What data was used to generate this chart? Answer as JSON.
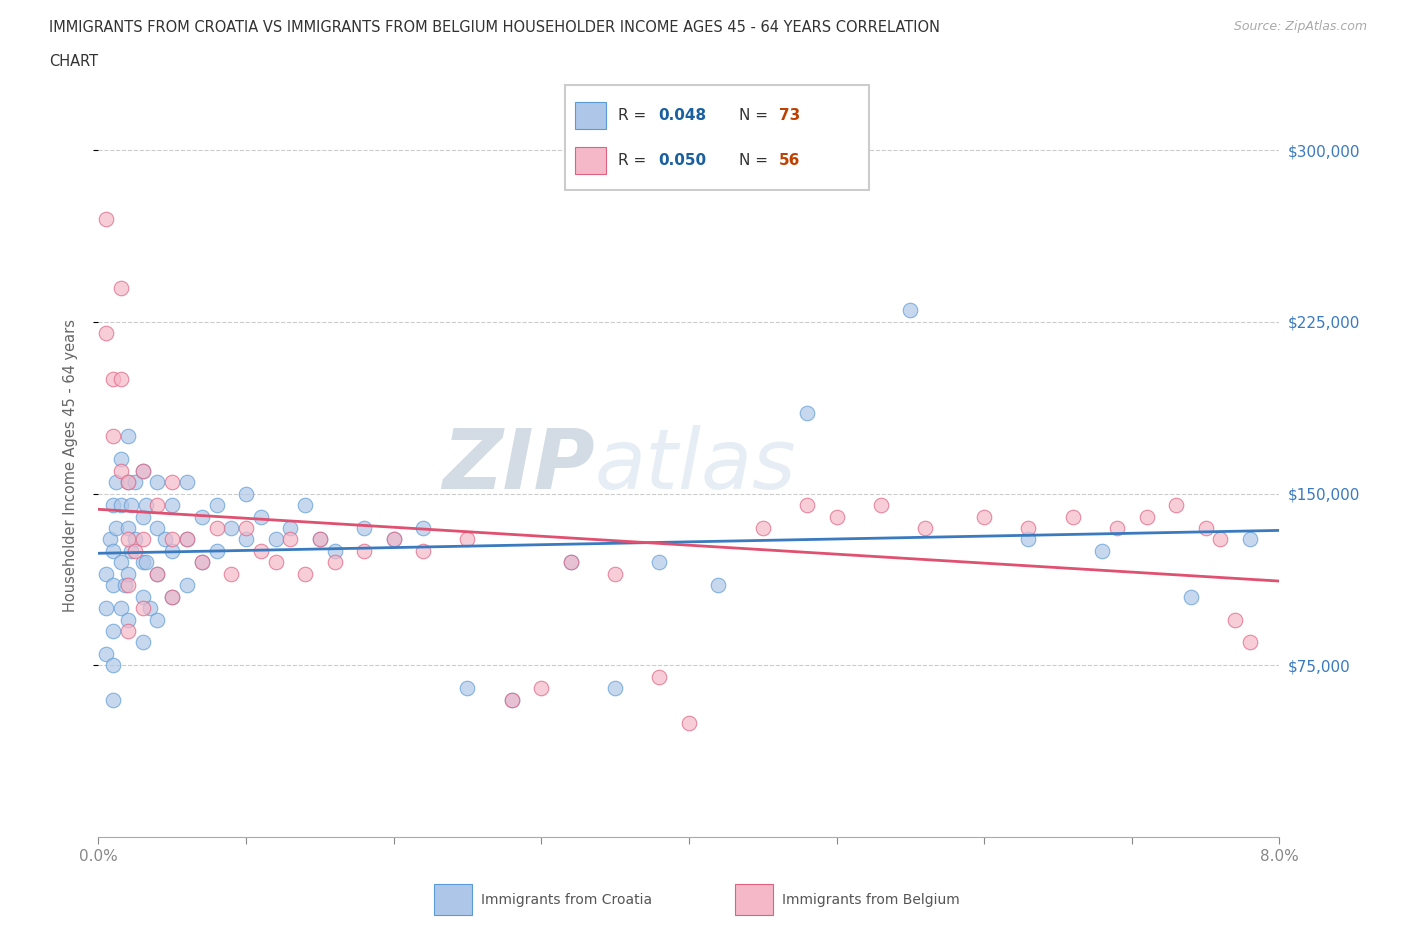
{
  "title_line1": "IMMIGRANTS FROM CROATIA VS IMMIGRANTS FROM BELGIUM HOUSEHOLDER INCOME AGES 45 - 64 YEARS CORRELATION",
  "title_line2": "CHART",
  "source_text": "Source: ZipAtlas.com",
  "ylabel": "Householder Income Ages 45 - 64 years",
  "xlim": [
    0.0,
    0.08
  ],
  "ylim": [
    0,
    325000
  ],
  "xticks": [
    0.0,
    0.01,
    0.02,
    0.03,
    0.04,
    0.05,
    0.06,
    0.07,
    0.08
  ],
  "xticklabels": [
    "0.0%",
    "",
    "",
    "",
    "",
    "",
    "",
    "",
    "8.0%"
  ],
  "ytick_positions": [
    75000,
    150000,
    225000,
    300000
  ],
  "ytick_labels": [
    "$75,000",
    "$150,000",
    "$225,000",
    "$300,000"
  ],
  "croatia_color": "#aec7e8",
  "croatia_edge": "#5b9bd5",
  "belgium_color": "#f4b8c8",
  "belgium_edge": "#e06080",
  "croatia_line_color": "#3a7abf",
  "belgium_line_color": "#e05070",
  "R_croatia": 0.048,
  "N_croatia": 73,
  "R_belgium": 0.05,
  "N_belgium": 56,
  "legend_R_color": "#1a5fa0",
  "legend_N_color": "#c04000",
  "watermark_zip": "ZIP",
  "watermark_atlas": "atlas",
  "watermark_color_zip": "#d0dde8",
  "watermark_color_atlas": "#c8d8e8",
  "croatia_x": [
    0.0005,
    0.0005,
    0.0005,
    0.0008,
    0.001,
    0.001,
    0.001,
    0.001,
    0.001,
    0.001,
    0.0012,
    0.0012,
    0.0015,
    0.0015,
    0.0015,
    0.0015,
    0.0018,
    0.002,
    0.002,
    0.002,
    0.002,
    0.002,
    0.0022,
    0.0022,
    0.0025,
    0.0025,
    0.003,
    0.003,
    0.003,
    0.003,
    0.003,
    0.0032,
    0.0032,
    0.0035,
    0.004,
    0.004,
    0.004,
    0.004,
    0.0045,
    0.005,
    0.005,
    0.005,
    0.006,
    0.006,
    0.006,
    0.007,
    0.007,
    0.008,
    0.008,
    0.009,
    0.01,
    0.01,
    0.011,
    0.012,
    0.013,
    0.014,
    0.015,
    0.016,
    0.018,
    0.02,
    0.022,
    0.025,
    0.028,
    0.032,
    0.035,
    0.038,
    0.042,
    0.048,
    0.055,
    0.063,
    0.068,
    0.074,
    0.078
  ],
  "croatia_y": [
    115000,
    100000,
    80000,
    130000,
    145000,
    125000,
    110000,
    90000,
    75000,
    60000,
    155000,
    135000,
    165000,
    145000,
    120000,
    100000,
    110000,
    175000,
    155000,
    135000,
    115000,
    95000,
    145000,
    125000,
    155000,
    130000,
    160000,
    140000,
    120000,
    105000,
    85000,
    145000,
    120000,
    100000,
    155000,
    135000,
    115000,
    95000,
    130000,
    145000,
    125000,
    105000,
    155000,
    130000,
    110000,
    140000,
    120000,
    145000,
    125000,
    135000,
    150000,
    130000,
    140000,
    130000,
    135000,
    145000,
    130000,
    125000,
    135000,
    130000,
    135000,
    65000,
    60000,
    120000,
    65000,
    120000,
    110000,
    185000,
    230000,
    130000,
    125000,
    105000,
    130000
  ],
  "belgium_x": [
    0.0005,
    0.0005,
    0.001,
    0.001,
    0.0015,
    0.0015,
    0.0015,
    0.002,
    0.002,
    0.002,
    0.002,
    0.0025,
    0.003,
    0.003,
    0.003,
    0.004,
    0.004,
    0.005,
    0.005,
    0.005,
    0.006,
    0.007,
    0.008,
    0.009,
    0.01,
    0.011,
    0.012,
    0.013,
    0.014,
    0.015,
    0.016,
    0.018,
    0.02,
    0.022,
    0.025,
    0.028,
    0.03,
    0.032,
    0.035,
    0.038,
    0.04,
    0.045,
    0.048,
    0.05,
    0.053,
    0.056,
    0.06,
    0.063,
    0.066,
    0.069,
    0.071,
    0.073,
    0.075,
    0.076,
    0.077,
    0.078
  ],
  "belgium_y": [
    270000,
    220000,
    200000,
    175000,
    240000,
    200000,
    160000,
    155000,
    130000,
    110000,
    90000,
    125000,
    160000,
    130000,
    100000,
    145000,
    115000,
    155000,
    130000,
    105000,
    130000,
    120000,
    135000,
    115000,
    135000,
    125000,
    120000,
    130000,
    115000,
    130000,
    120000,
    125000,
    130000,
    125000,
    130000,
    60000,
    65000,
    120000,
    115000,
    70000,
    50000,
    135000,
    145000,
    140000,
    145000,
    135000,
    140000,
    135000,
    140000,
    135000,
    140000,
    145000,
    135000,
    130000,
    95000,
    85000
  ]
}
